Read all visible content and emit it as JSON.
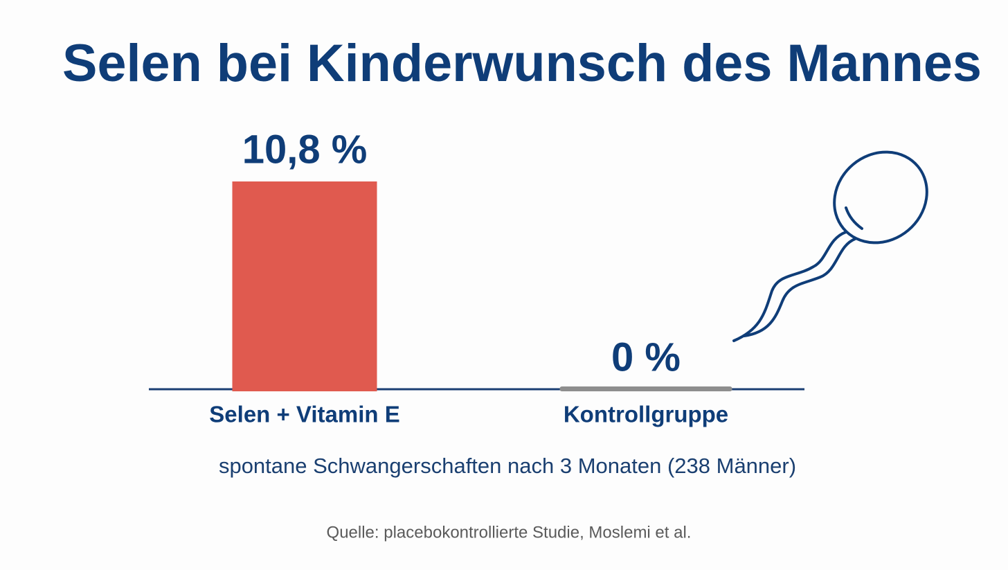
{
  "chart_data": {
    "type": "bar",
    "title": "Selen bei Kinderwunsch des Mannes",
    "subtitle": "spontane Schwangerschaften nach 3 Monaten (238 Männer)",
    "source": "Quelle: placebokontrollierte Studie, Moslemi et al.",
    "categories": [
      "Selen + Vitamin E",
      "Kontrollgruppe"
    ],
    "values": [
      10.8,
      0
    ],
    "value_labels": [
      "10,8 %",
      "0 %"
    ],
    "colors": [
      "#e05a4f",
      "#8e8e8e"
    ]
  }
}
